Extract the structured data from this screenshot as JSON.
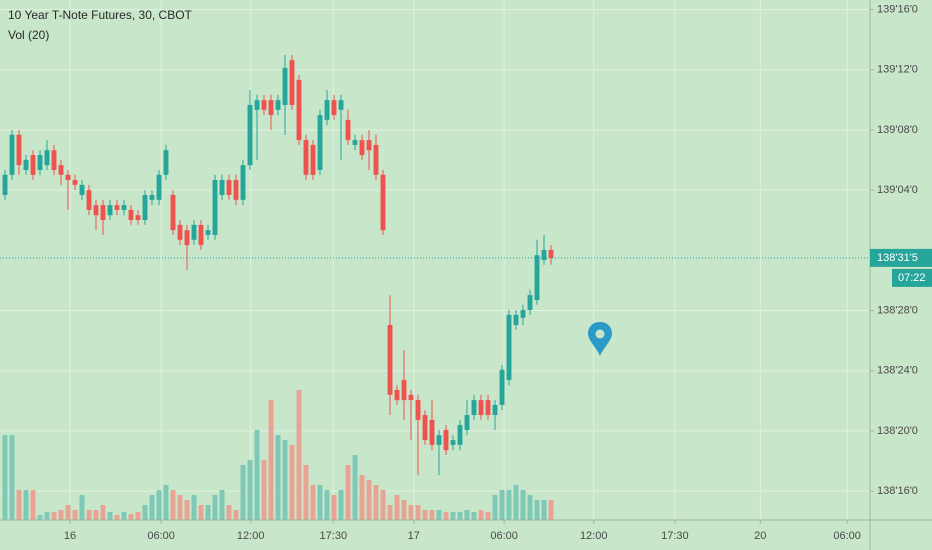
{
  "chart_data": {
    "type": "candlestick",
    "title": "10 Year T-Note Futures, 30, CBOT",
    "subtitle": "Vol (20)",
    "background": "#c8e6c9",
    "up_color": "#26a69a",
    "down_color": "#ef5350",
    "volume_up_color": "#7ec8b7",
    "volume_down_color": "#e9a394",
    "grid": true,
    "xlim": [
      -0.714,
      123.57
    ],
    "xticks": [
      {
        "value": 9.29,
        "label": "16"
      },
      {
        "value": 22.3,
        "label": "06:00"
      },
      {
        "value": 35.1,
        "label": "12:00"
      },
      {
        "value": 46.9,
        "label": "17:30"
      },
      {
        "value": 58.4,
        "label": "17"
      },
      {
        "value": 71.3,
        "label": "06:00"
      },
      {
        "value": 84.1,
        "label": "12:00"
      },
      {
        "value": 95.7,
        "label": "17:30"
      },
      {
        "value": 107.9,
        "label": "20"
      },
      {
        "value": 120.3,
        "label": "06:00"
      }
    ],
    "ylim": [
      138.44,
      139.52
    ],
    "yticks": [
      {
        "value": 138.5,
        "label": "138'16'0"
      },
      {
        "value": 138.625,
        "label": "138'20'0"
      },
      {
        "value": 138.75,
        "label": "138'24'0"
      },
      {
        "value": 138.875,
        "label": "138'28'0"
      },
      {
        "value": 139.125,
        "label": "139'04'0"
      },
      {
        "value": 139.25,
        "label": "139'08'0"
      },
      {
        "value": 139.375,
        "label": "139'12'0"
      },
      {
        "value": 139.5,
        "label": "139'16'0"
      }
    ],
    "last_price": {
      "value": 138.984375,
      "label": "138'31'5"
    },
    "countdown": "07:22",
    "volume_lim": [
      0,
      520
    ],
    "open": [
      139.115,
      139.157,
      139.24,
      139.167,
      139.198,
      139.167,
      139.177,
      139.208,
      139.177,
      139.157,
      139.146,
      139.115,
      139.125,
      139.094,
      139.094,
      139.073,
      139.094,
      139.084,
      139.084,
      139.073,
      139.063,
      139.105,
      139.105,
      139.157,
      139.115,
      139.053,
      139.042,
      139.022,
      139.053,
      139.032,
      139.032,
      139.115,
      139.146,
      139.146,
      139.105,
      139.177,
      139.292,
      139.312,
      139.312,
      139.292,
      139.302,
      139.395,
      139.354,
      139.229,
      139.219,
      139.167,
      139.271,
      139.312,
      139.292,
      139.271,
      139.219,
      139.229,
      139.229,
      139.219,
      139.157,
      138.845,
      138.71,
      138.731,
      138.7,
      138.689,
      138.658,
      138.648,
      138.596,
      138.627,
      138.596,
      138.596,
      138.627,
      138.658,
      138.689,
      138.689,
      138.658,
      138.679,
      138.731,
      138.845,
      138.86,
      138.876,
      138.897,
      138.98,
      139.001
    ],
    "high": [
      139.167,
      139.25,
      139.25,
      139.198,
      139.208,
      139.208,
      139.229,
      139.219,
      139.188,
      139.167,
      139.157,
      139.146,
      139.136,
      139.105,
      139.105,
      139.105,
      139.105,
      139.105,
      139.094,
      139.084,
      139.125,
      139.125,
      139.167,
      139.219,
      139.125,
      139.063,
      139.053,
      139.063,
      139.063,
      139.053,
      139.157,
      139.157,
      139.157,
      139.157,
      139.188,
      139.333,
      139.323,
      139.323,
      139.323,
      139.323,
      139.406,
      139.406,
      139.364,
      139.24,
      139.229,
      139.292,
      139.333,
      139.323,
      139.323,
      139.292,
      139.24,
      139.24,
      139.25,
      139.24,
      139.167,
      138.907,
      138.72,
      138.793,
      138.71,
      138.7,
      138.668,
      138.689,
      138.627,
      138.637,
      138.616,
      138.648,
      138.689,
      138.7,
      138.7,
      138.7,
      138.689,
      138.762,
      138.876,
      138.876,
      138.887,
      138.918,
      139.022,
      139.032,
      139.011
    ],
    "low": [
      139.105,
      139.146,
      139.157,
      139.157,
      139.146,
      139.157,
      139.167,
      139.157,
      139.136,
      139.084,
      139.125,
      139.105,
      139.073,
      139.042,
      139.032,
      139.063,
      139.073,
      139.073,
      139.053,
      139.053,
      139.053,
      139.094,
      139.094,
      139.146,
      139.032,
      139.011,
      138.959,
      139.011,
      139.001,
      139.022,
      139.022,
      139.105,
      139.105,
      139.094,
      139.094,
      139.167,
      139.188,
      139.281,
      139.25,
      139.281,
      139.24,
      139.292,
      139.219,
      139.146,
      139.146,
      139.157,
      139.26,
      139.271,
      139.188,
      139.219,
      139.208,
      139.188,
      139.167,
      139.146,
      139.032,
      138.658,
      138.679,
      138.648,
      138.606,
      138.533,
      138.596,
      138.585,
      138.533,
      138.575,
      138.585,
      138.585,
      138.616,
      138.648,
      138.648,
      138.648,
      138.627,
      138.668,
      138.72,
      138.835,
      138.845,
      138.866,
      138.887,
      138.97,
      138.97
    ],
    "close": [
      139.157,
      139.24,
      139.177,
      139.188,
      139.157,
      139.198,
      139.208,
      139.167,
      139.157,
      139.146,
      139.136,
      139.136,
      139.084,
      139.073,
      139.063,
      139.094,
      139.084,
      139.094,
      139.063,
      139.063,
      139.115,
      139.115,
      139.157,
      139.208,
      139.042,
      139.022,
      139.011,
      139.053,
      139.011,
      139.042,
      139.146,
      139.146,
      139.115,
      139.105,
      139.177,
      139.302,
      139.312,
      139.292,
      139.281,
      139.312,
      139.379,
      139.302,
      139.229,
      139.157,
      139.157,
      139.281,
      139.312,
      139.281,
      139.312,
      139.229,
      139.229,
      139.198,
      139.208,
      139.157,
      139.042,
      138.7,
      138.689,
      138.689,
      138.689,
      138.648,
      138.606,
      138.596,
      138.616,
      138.585,
      138.606,
      138.637,
      138.658,
      138.689,
      138.658,
      138.658,
      138.679,
      138.752,
      138.866,
      138.866,
      138.876,
      138.907,
      138.99,
      139.001,
      138.984
    ],
    "volume": [
      85,
      85,
      30,
      30,
      30,
      5,
      8,
      8,
      10,
      15,
      10,
      25,
      10,
      10,
      15,
      8,
      5,
      8,
      6,
      8,
      15,
      25,
      30,
      35,
      30,
      25,
      20,
      25,
      15,
      15,
      25,
      30,
      15,
      10,
      55,
      60,
      90,
      60,
      120,
      85,
      80,
      75,
      130,
      55,
      35,
      35,
      30,
      25,
      30,
      55,
      65,
      45,
      40,
      35,
      30,
      15,
      25,
      20,
      15,
      15,
      10,
      10,
      10,
      8,
      8,
      8,
      10,
      8,
      10,
      8,
      25,
      30,
      30,
      35,
      30,
      25,
      20,
      20,
      20
    ]
  }
}
